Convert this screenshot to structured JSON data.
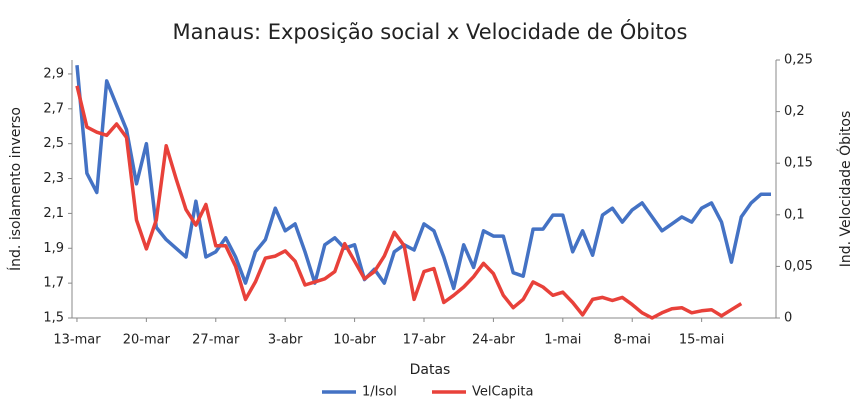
{
  "chart_data": {
    "type": "line",
    "title": "Manaus: Exposição social x Velocidade de Óbitos",
    "xlabel": "Datas",
    "ylabel": "Índ. isolamento inverso",
    "y2label": "Ind. Velocidade Óbitos",
    "categories": [
      "13-mar",
      null,
      null,
      null,
      null,
      null,
      null,
      "20-mar",
      null,
      null,
      null,
      null,
      null,
      null,
      "27-mar",
      null,
      null,
      null,
      null,
      null,
      null,
      "3-abr",
      null,
      null,
      null,
      null,
      null,
      null,
      "10-abr",
      null,
      null,
      null,
      null,
      null,
      null,
      "17-abr",
      null,
      null,
      null,
      null,
      null,
      null,
      "24-abr",
      null,
      null,
      null,
      null,
      null,
      null,
      "1-mai",
      null,
      null,
      null,
      null,
      null,
      null,
      "8-mai",
      null,
      null,
      null,
      null,
      null,
      null,
      "15-mai",
      null,
      null,
      null,
      null,
      null,
      null,
      null
    ],
    "series": [
      {
        "name": "1/Isol",
        "color": "#4472c4",
        "values": [
          2.95,
          2.33,
          2.22,
          2.86,
          2.72,
          2.58,
          2.27,
          2.5,
          2.02,
          1.95,
          1.9,
          1.85,
          2.17,
          1.85,
          1.88,
          1.96,
          1.85,
          1.7,
          1.88,
          1.95,
          2.13,
          2.0,
          2.04,
          1.88,
          1.7,
          1.92,
          1.96,
          1.9,
          1.92,
          1.72,
          1.78,
          1.7,
          1.88,
          1.92,
          1.89,
          2.04,
          2.0,
          1.85,
          1.67,
          1.92,
          1.79,
          2.0,
          1.97,
          1.97,
          1.76,
          1.74,
          2.01,
          2.01,
          2.09,
          2.09,
          1.88,
          2.0,
          1.86,
          2.09,
          2.13,
          2.05,
          2.12,
          2.16,
          2.08,
          2.0,
          2.04,
          2.08,
          2.05,
          2.13,
          2.16,
          2.05,
          1.82,
          2.08,
          2.16,
          2.21,
          2.21
        ]
      },
      {
        "name": "VelCapita",
        "color": "#e8413a",
        "axis": "y2",
        "values": [
          0.225,
          0.185,
          0.18,
          0.177,
          0.188,
          0.175,
          0.095,
          0.067,
          0.095,
          0.167,
          0.135,
          0.105,
          0.09,
          0.11,
          0.07,
          0.07,
          0.05,
          0.018,
          0.035,
          0.058,
          0.06,
          0.065,
          0.055,
          0.032,
          0.035,
          0.038,
          0.045,
          0.072,
          0.055,
          0.038,
          0.045,
          0.06,
          0.083,
          0.07,
          0.018,
          0.045,
          0.048,
          0.015,
          0.022,
          0.03,
          0.04,
          0.053,
          0.043,
          0.022,
          0.01,
          0.018,
          0.035,
          0.03,
          0.022,
          0.025,
          0.015,
          0.003,
          0.018,
          0.02,
          0.017,
          0.02,
          0.013,
          0.005,
          0.0,
          0.005,
          0.009,
          0.01,
          0.005,
          0.007,
          0.008,
          0.002,
          0.008,
          0.014,
          null,
          null,
          null
        ]
      }
    ],
    "ylim": [
      1.5,
      2.98
    ],
    "yticks": [
      {
        "value": 1.5,
        "label": "1,5"
      },
      {
        "value": 1.7,
        "label": "1,7"
      },
      {
        "value": 1.9,
        "label": "1,9"
      },
      {
        "value": 2.1,
        "label": "2,1"
      },
      {
        "value": 2.3,
        "label": "2,3"
      },
      {
        "value": 2.5,
        "label": "2,5"
      },
      {
        "value": 2.7,
        "label": "2,7"
      },
      {
        "value": 2.9,
        "label": "2,9"
      }
    ],
    "y2lim": [
      0,
      0.25
    ],
    "y2ticks": [
      0,
      {
        "value": 0.05,
        "label": "0,05"
      },
      {
        "value": 0.1,
        "label": "0,1"
      },
      {
        "value": 0.15,
        "label": "0,15"
      },
      {
        "value": 0.2,
        "label": "0,2"
      },
      {
        "value": 0.25,
        "label": "0,25"
      }
    ],
    "legend": "bottom"
  }
}
